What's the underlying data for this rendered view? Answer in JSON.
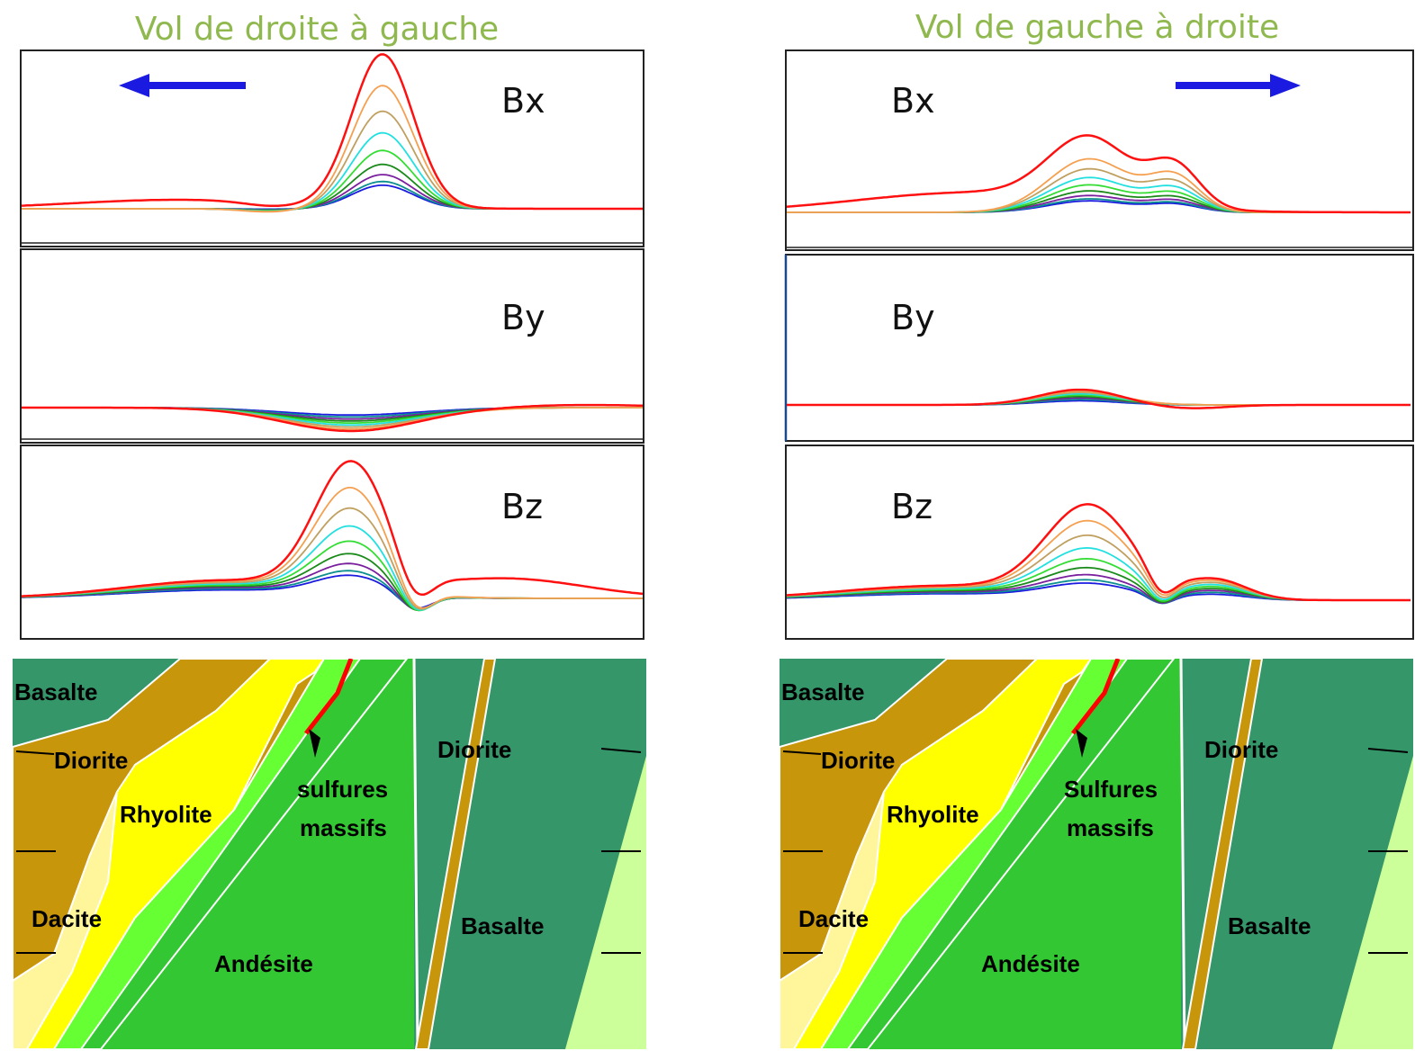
{
  "panels": [
    {
      "title": "Vol de droite à  gauche",
      "arrow_direction": "left",
      "plots": [
        {
          "label": "Bx"
        },
        {
          "label": "By"
        },
        {
          "label": "Bz"
        }
      ],
      "geology_labels": {
        "basalte_left": "Basalte",
        "diorite_left": "Diorite",
        "rhyolite": "Rhyolite",
        "dacite": "Dacite",
        "andesite": "Andésite",
        "sulfures": "sulfures",
        "massifs": "massifs",
        "diorite_right": "Diorite",
        "basalte_right": "Basalte"
      }
    },
    {
      "title": "Vol de gauche à droite",
      "arrow_direction": "right",
      "plots": [
        {
          "label": "Bx"
        },
        {
          "label": "By"
        },
        {
          "label": "Bz"
        }
      ],
      "geology_labels": {
        "basalte_left": "Basalte",
        "diorite_left": "Diorite",
        "rhyolite": "Rhyolite",
        "dacite": "Dacite",
        "andesite": "Andésite",
        "sulfures": "Sulfures",
        "massifs": "massifs",
        "diorite_right": "Diorite",
        "basalte_right": "Basalte"
      }
    }
  ],
  "colors": {
    "title": "#8fb84e",
    "arrow": "#1a1ae0",
    "basalt": "#35966a",
    "diorite": "#c8960a",
    "rhyolite": "#ffff00",
    "dacite": "#fff59a",
    "andesite": "#33c733",
    "light_green": "#66ff33",
    "pale_green": "#ccff99",
    "sulfide": "#ff0000"
  },
  "curve_colors": [
    "#1b1be0",
    "#0b8f8f",
    "#7a1f9e",
    "#1a8a1a",
    "#33dd33",
    "#22e0e0",
    "#c0a060",
    "#f5a050",
    "#ff1010"
  ]
}
